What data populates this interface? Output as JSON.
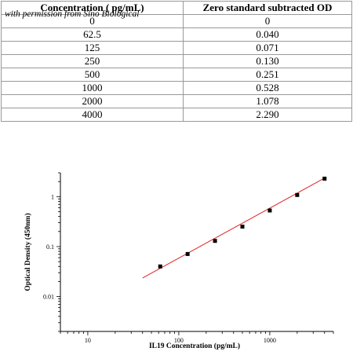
{
  "table": {
    "credit": "with permission from Sino Biological",
    "headers": [
      "Concentration ( pg/mL)",
      "Zero standard subtracted OD"
    ],
    "rows": [
      [
        "0",
        "0"
      ],
      [
        "62.5",
        "0.040"
      ],
      [
        "125",
        "0.071"
      ],
      [
        "250",
        "0.130"
      ],
      [
        "500",
        "0.251"
      ],
      [
        "1000",
        "0.528"
      ],
      [
        "2000",
        "1.078"
      ],
      [
        "4000",
        "2.290"
      ]
    ]
  },
  "chart_data": {
    "type": "scatter",
    "x_scale": "log",
    "y_scale": "log",
    "xlabel": "IL19 Concentration (pg/mL)",
    "ylabel": "Optical Density (450nm)",
    "xlim": [
      5,
      5000
    ],
    "ylim": [
      0.002,
      3
    ],
    "x_ticks": [
      "10",
      "100",
      "1000"
    ],
    "y_ticks": [
      "0.01",
      "0.1",
      "1"
    ],
    "points": {
      "x": [
        62.5,
        125,
        250,
        500,
        1000,
        2000,
        4000
      ],
      "y": [
        0.04,
        0.071,
        0.13,
        0.251,
        0.528,
        1.078,
        2.29
      ]
    },
    "fit_line": {
      "x": [
        40,
        4000
      ],
      "y": [
        0.0235,
        2.35
      ],
      "color": "#e02020"
    },
    "marker_color": "#000000",
    "grid": false
  }
}
